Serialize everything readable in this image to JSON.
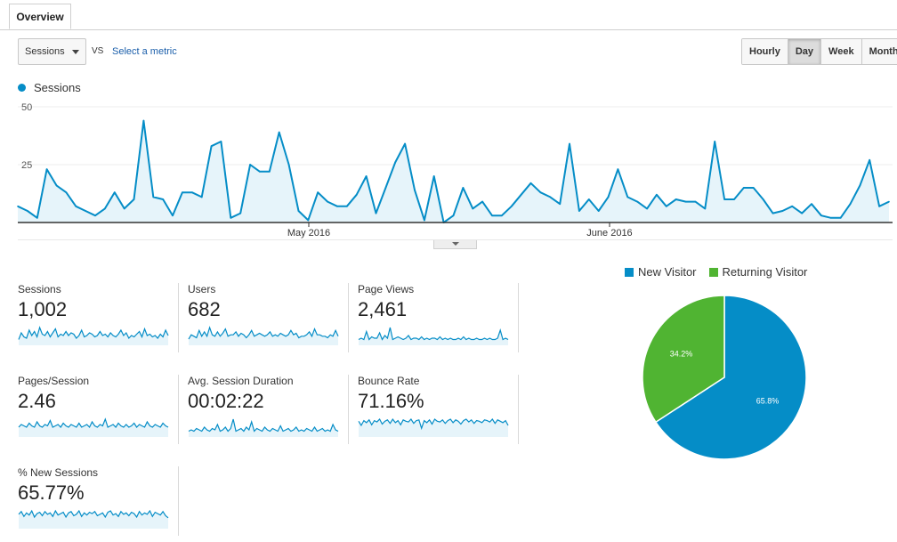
{
  "tabs": [
    {
      "label": "Overview"
    }
  ],
  "controls": {
    "metric_select": "Sessions",
    "vs_label": "VS",
    "select_metric_link": "Select a metric",
    "periods": [
      "Hourly",
      "Day",
      "Week",
      "Month"
    ],
    "active_period": "Day"
  },
  "colors": {
    "line": "#058dc7",
    "fill": "#e6f4fa",
    "new_visitor": "#058dc7",
    "returning_visitor": "#50b432"
  },
  "chart_data": [
    {
      "type": "area",
      "series": [
        {
          "name": "Sessions",
          "values": [
            7,
            5,
            2,
            23,
            16,
            13,
            7,
            5,
            3,
            6,
            13,
            6,
            10,
            44,
            11,
            10,
            3,
            13,
            13,
            11,
            33,
            35,
            2,
            4,
            25,
            22,
            22,
            39,
            25,
            5,
            1,
            13,
            9,
            7,
            7,
            12,
            20,
            4,
            15,
            26,
            34,
            14,
            1,
            20,
            0,
            3,
            15,
            6,
            9,
            3,
            3,
            7,
            12,
            17,
            13,
            11,
            8,
            34,
            5,
            10,
            5,
            11,
            23,
            11,
            9,
            6,
            12,
            7,
            10,
            9,
            9,
            6,
            35,
            10,
            10,
            15,
            15,
            10,
            4,
            5,
            7,
            4,
            8,
            3,
            2,
            2,
            8,
            16,
            27,
            7,
            9
          ]
        }
      ],
      "x_ticks": [
        "May 2016",
        "June 2016"
      ],
      "y_ticks": [
        "50",
        "25"
      ],
      "ylim": [
        0,
        50
      ]
    },
    {
      "type": "pie",
      "labels": [
        "New Visitor",
        "Returning Visitor"
      ],
      "values": [
        65.8,
        34.2
      ],
      "slice_labels": [
        "65.8%",
        "34.2%"
      ]
    }
  ],
  "metrics": [
    {
      "label": "Sessions",
      "value": "1,002",
      "spark": [
        3,
        8,
        5,
        4,
        10,
        6,
        9,
        5,
        12,
        7,
        6,
        9,
        5,
        8,
        11,
        5,
        7,
        6,
        9,
        6,
        8,
        7,
        4,
        6,
        10,
        5,
        6,
        8,
        7,
        5,
        6,
        9,
        6,
        7,
        5,
        8,
        6,
        5,
        7,
        10,
        6,
        8,
        4,
        6,
        5,
        7,
        9,
        5,
        11,
        6,
        7,
        5,
        6,
        4,
        7,
        5,
        10,
        6
      ]
    },
    {
      "label": "Users",
      "value": "682",
      "spark": [
        3,
        6,
        5,
        4,
        9,
        5,
        8,
        5,
        11,
        6,
        5,
        8,
        5,
        7,
        10,
        5,
        6,
        6,
        8,
        5,
        7,
        6,
        4,
        6,
        9,
        5,
        6,
        7,
        6,
        5,
        6,
        8,
        5,
        6,
        5,
        7,
        6,
        5,
        6,
        9,
        6,
        7,
        4,
        5,
        5,
        6,
        8,
        5,
        10,
        6,
        6,
        5,
        5,
        4,
        6,
        5,
        9,
        5
      ]
    },
    {
      "label": "Page Views",
      "value": "2,461",
      "spark": [
        3,
        4,
        3,
        9,
        3,
        5,
        4,
        4,
        8,
        3,
        6,
        4,
        12,
        3,
        4,
        5,
        4,
        3,
        4,
        6,
        3,
        4,
        4,
        3,
        5,
        3,
        4,
        3,
        4,
        4,
        3,
        5,
        3,
        4,
        3,
        4,
        3,
        3,
        4,
        3,
        5,
        3,
        4,
        3,
        3,
        4,
        3,
        3,
        4,
        3,
        4,
        3,
        3,
        4,
        10,
        3,
        4,
        3
      ]
    },
    {
      "label": "Pages/Session",
      "value": "2.46",
      "spark": [
        6,
        8,
        7,
        6,
        9,
        7,
        6,
        10,
        7,
        6,
        8,
        7,
        11,
        6,
        7,
        8,
        6,
        9,
        7,
        6,
        8,
        7,
        6,
        9,
        6,
        7,
        8,
        6,
        10,
        7,
        6,
        8,
        7,
        12,
        6,
        7,
        8,
        6,
        9,
        7,
        6,
        8,
        6,
        7,
        9,
        6,
        8,
        7,
        6,
        10,
        7,
        6,
        8,
        7,
        6,
        9,
        7,
        6
      ]
    },
    {
      "label": "Avg. Session Duration",
      "value": "00:02:22",
      "spark": [
        3,
        4,
        3,
        5,
        4,
        3,
        6,
        4,
        3,
        5,
        4,
        8,
        3,
        4,
        6,
        3,
        5,
        12,
        3,
        4,
        5,
        3,
        6,
        4,
        10,
        3,
        5,
        4,
        3,
        6,
        4,
        3,
        5,
        4,
        3,
        7,
        3,
        4,
        5,
        3,
        4,
        6,
        3,
        4,
        3,
        5,
        4,
        3,
        6,
        3,
        4,
        5,
        3,
        4,
        3,
        8,
        4,
        3
      ]
    },
    {
      "label": "Bounce Rate",
      "value": "71.16%",
      "spark": [
        20,
        14,
        21,
        18,
        22,
        15,
        21,
        19,
        23,
        16,
        20,
        22,
        17,
        23,
        18,
        21,
        15,
        22,
        20,
        19,
        23,
        17,
        21,
        22,
        10,
        21,
        18,
        22,
        16,
        23,
        20,
        19,
        22,
        17,
        21,
        23,
        18,
        22,
        20,
        16,
        21,
        23,
        19,
        22,
        17,
        21,
        20,
        18,
        22,
        21,
        19,
        23,
        17,
        22,
        20,
        18,
        21,
        14
      ]
    },
    {
      "label": "% New Sessions",
      "value": "65.77%",
      "spark": [
        18,
        22,
        15,
        20,
        17,
        23,
        14,
        19,
        21,
        16,
        22,
        18,
        20,
        15,
        23,
        17,
        19,
        21,
        14,
        20,
        22,
        16,
        18,
        23,
        15,
        20,
        17,
        21,
        19,
        22,
        16,
        18,
        20,
        14,
        21,
        23,
        17,
        19,
        15,
        22,
        18,
        20,
        16,
        21,
        19,
        14,
        22,
        17,
        20,
        18,
        23,
        15,
        21,
        19,
        17,
        22,
        16,
        13
      ]
    }
  ]
}
